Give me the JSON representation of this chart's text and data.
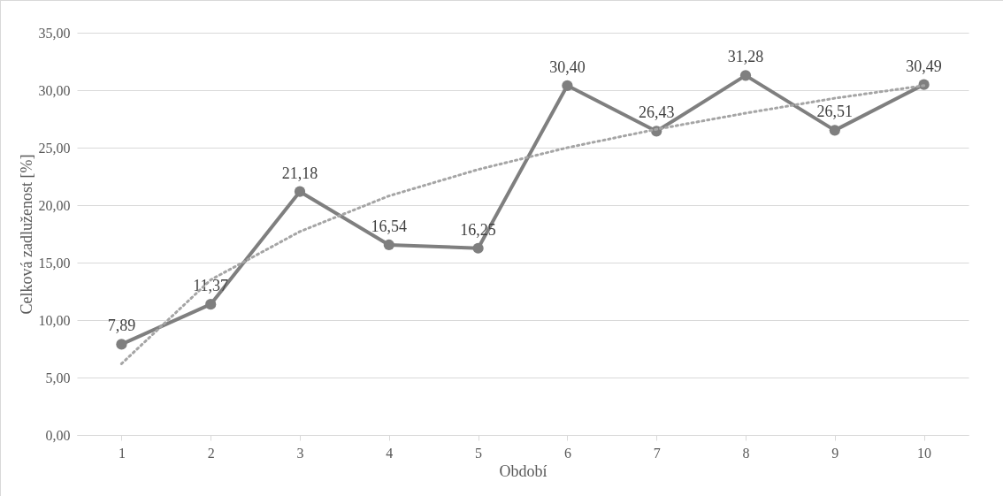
{
  "chart_data": {
    "type": "line",
    "xlabel": "Období",
    "ylabel": "Celková zadluženost [%]",
    "categories": [
      "1",
      "2",
      "3",
      "4",
      "5",
      "6",
      "7",
      "8",
      "9",
      "10"
    ],
    "series": [
      {
        "color": "#7f7f7f",
        "values": [
          7.89,
          11.37,
          21.18,
          16.54,
          16.25,
          30.4,
          26.43,
          31.28,
          26.51,
          30.49
        ],
        "value_labels": [
          "7,89",
          "11,37",
          "21,18",
          "16,54",
          "16,25",
          "30,40",
          "26,43",
          "31,28",
          "26,51",
          "30,49"
        ]
      },
      {
        "type": "line",
        "color": "#a5a5a5",
        "line_style": "dotted",
        "marker": "none",
        "values": [
          6.2,
          13.5,
          17.7,
          20.8,
          23.1,
          25.0,
          26.6,
          28.0,
          29.3,
          30.4
        ]
      }
    ],
    "ylim": [
      0,
      35
    ],
    "yticks": [
      {
        "value": 0,
        "label": "0,00"
      },
      {
        "value": 5,
        "label": "5,00"
      },
      {
        "value": 10,
        "label": "10,00"
      },
      {
        "value": 15,
        "label": "15,00"
      },
      {
        "value": 20,
        "label": "20,00"
      },
      {
        "value": 25,
        "label": "25,00"
      },
      {
        "value": 30,
        "label": "30,00"
      },
      {
        "value": 35,
        "label": "35,00"
      }
    ],
    "grid": "y",
    "marker": "circle",
    "line_style": "solid"
  }
}
